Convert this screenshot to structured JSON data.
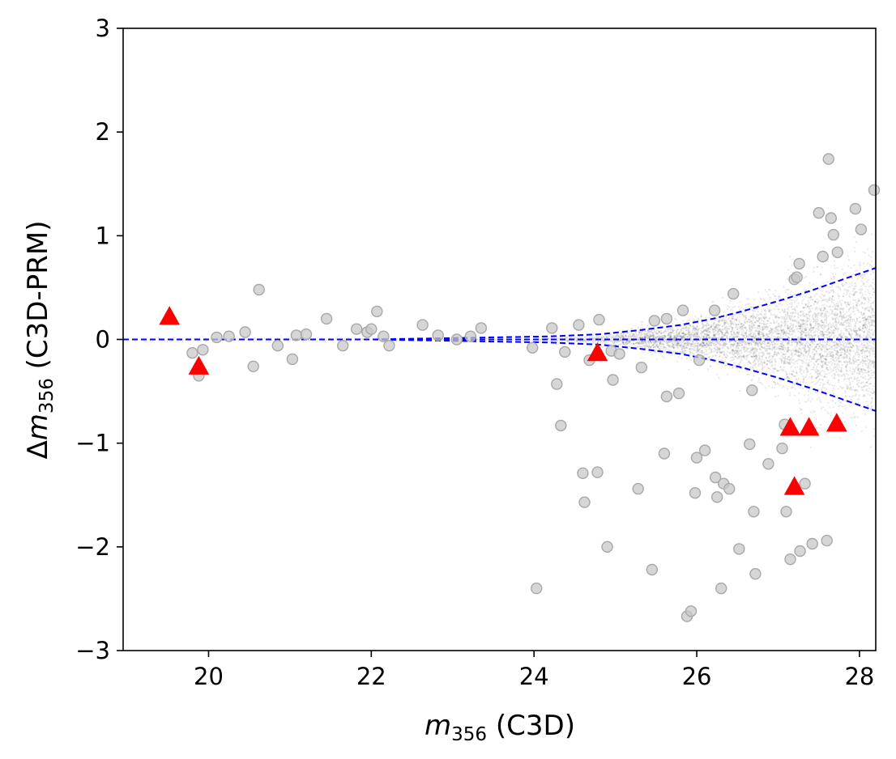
{
  "chart_data": {
    "type": "scatter",
    "title": "",
    "xlabel": {
      "symbol": "m",
      "subscript": "356",
      "suffix": "(C3D)"
    },
    "ylabel": {
      "prefix": "Δ",
      "symbol": "m",
      "subscript": "356",
      "suffix": "(C3D-PRM)"
    },
    "xlim": [
      18.95,
      28.2
    ],
    "ylim": [
      -3,
      3
    ],
    "xticks": [
      20,
      22,
      24,
      26,
      28
    ],
    "xtick_labels": [
      "20",
      "22",
      "24",
      "26",
      "28"
    ],
    "yticks": [
      -3,
      -2,
      -1,
      0,
      1,
      2,
      3
    ],
    "ytick_labels": [
      "−3",
      "−2",
      "−1",
      "0",
      "1",
      "2",
      "3"
    ],
    "grid": false,
    "colors": {
      "density": "#000000",
      "outliers": "#a8a8a8",
      "triangles": "#ff0000",
      "envelope": "#0000ff"
    },
    "series": [
      {
        "name": "outliers",
        "marker": "circle",
        "points": [
          [
            19.8,
            -0.13
          ],
          [
            19.88,
            -0.35
          ],
          [
            19.93,
            -0.1
          ],
          [
            20.1,
            0.02
          ],
          [
            20.25,
            0.03
          ],
          [
            20.45,
            0.07
          ],
          [
            20.55,
            -0.26
          ],
          [
            20.62,
            0.48
          ],
          [
            20.85,
            -0.06
          ],
          [
            21.03,
            -0.19
          ],
          [
            21.08,
            0.04
          ],
          [
            21.2,
            0.05
          ],
          [
            21.45,
            0.2
          ],
          [
            21.65,
            -0.06
          ],
          [
            21.82,
            0.1
          ],
          [
            21.95,
            0.07
          ],
          [
            22.0,
            0.1
          ],
          [
            22.07,
            0.27
          ],
          [
            22.15,
            0.03
          ],
          [
            22.22,
            -0.06
          ],
          [
            22.63,
            0.14
          ],
          [
            22.82,
            0.04
          ],
          [
            23.05,
            0.0
          ],
          [
            23.22,
            0.03
          ],
          [
            23.35,
            0.11
          ],
          [
            23.98,
            -0.08
          ],
          [
            24.03,
            -2.4
          ],
          [
            24.22,
            0.11
          ],
          [
            24.28,
            -0.43
          ],
          [
            24.33,
            -0.83
          ],
          [
            24.38,
            -0.12
          ],
          [
            24.55,
            0.14
          ],
          [
            24.6,
            -1.29
          ],
          [
            24.62,
            -1.57
          ],
          [
            24.68,
            -0.2
          ],
          [
            24.78,
            -1.28
          ],
          [
            24.8,
            0.19
          ],
          [
            24.9,
            -2.0
          ],
          [
            24.95,
            -0.11
          ],
          [
            24.97,
            -0.39
          ],
          [
            25.05,
            -0.14
          ],
          [
            25.28,
            -1.44
          ],
          [
            25.32,
            -0.27
          ],
          [
            25.45,
            -2.22
          ],
          [
            25.48,
            0.18
          ],
          [
            25.6,
            -1.1
          ],
          [
            25.63,
            0.2
          ],
          [
            25.63,
            -0.55
          ],
          [
            25.78,
            -0.52
          ],
          [
            25.83,
            0.28
          ],
          [
            25.88,
            -2.67
          ],
          [
            25.93,
            -2.62
          ],
          [
            25.98,
            -1.48
          ],
          [
            26.0,
            -1.14
          ],
          [
            26.03,
            -0.2
          ],
          [
            26.1,
            -1.07
          ],
          [
            26.22,
            0.28
          ],
          [
            26.23,
            -1.33
          ],
          [
            26.25,
            -1.52
          ],
          [
            26.3,
            -2.4
          ],
          [
            26.33,
            -1.39
          ],
          [
            26.4,
            -1.44
          ],
          [
            26.45,
            0.44
          ],
          [
            26.52,
            -2.02
          ],
          [
            26.65,
            -1.01
          ],
          [
            26.68,
            -0.49
          ],
          [
            26.7,
            -1.66
          ],
          [
            26.72,
            -2.26
          ],
          [
            26.88,
            -1.2
          ],
          [
            27.05,
            -1.05
          ],
          [
            27.08,
            -0.82
          ],
          [
            27.1,
            -1.66
          ],
          [
            27.15,
            -2.12
          ],
          [
            27.2,
            0.58
          ],
          [
            27.23,
            0.6
          ],
          [
            27.26,
            0.73
          ],
          [
            27.27,
            -2.04
          ],
          [
            27.33,
            -1.39
          ],
          [
            27.42,
            -1.97
          ],
          [
            27.5,
            1.22
          ],
          [
            27.55,
            0.8
          ],
          [
            27.6,
            -1.94
          ],
          [
            27.62,
            1.74
          ],
          [
            27.65,
            1.17
          ],
          [
            27.68,
            1.01
          ],
          [
            27.73,
            0.84
          ],
          [
            27.95,
            1.26
          ],
          [
            28.02,
            1.06
          ],
          [
            28.18,
            1.44
          ]
        ]
      },
      {
        "name": "triangles",
        "marker": "triangle",
        "points": [
          [
            19.52,
            0.22
          ],
          [
            19.88,
            -0.26
          ],
          [
            24.78,
            -0.13
          ],
          [
            27.15,
            -0.85
          ],
          [
            27.2,
            -1.42
          ],
          [
            27.38,
            -0.85
          ],
          [
            27.72,
            -0.81
          ]
        ]
      }
    ],
    "envelope": {
      "x": [
        18.95,
        22.0,
        23.5,
        24.2,
        24.8,
        25.3,
        25.8,
        26.2,
        26.6,
        27.0,
        27.4,
        27.8,
        28.2
      ],
      "upper": [
        0.0,
        0.0,
        0.02,
        0.03,
        0.05,
        0.09,
        0.14,
        0.2,
        0.28,
        0.37,
        0.47,
        0.58,
        0.69
      ],
      "lower": [
        0.0,
        0.0,
        -0.02,
        -0.03,
        -0.05,
        -0.09,
        -0.14,
        -0.2,
        -0.28,
        -0.37,
        -0.47,
        -0.58,
        -0.69
      ]
    }
  }
}
